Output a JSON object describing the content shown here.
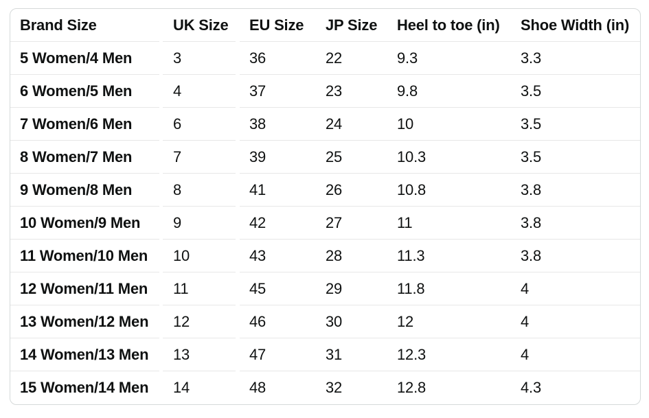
{
  "size_chart": {
    "columns": [
      {
        "key": "brand_size",
        "label": "Brand Size"
      },
      {
        "key": "uk_size",
        "label": "UK Size"
      },
      {
        "key": "eu_size",
        "label": "EU Size"
      },
      {
        "key": "jp_size",
        "label": "JP Size"
      },
      {
        "key": "heel_to_toe_in",
        "label": "Heel to toe (in)"
      },
      {
        "key": "shoe_width_in",
        "label": "Shoe Width (in)"
      }
    ],
    "rows": [
      {
        "brand_size": "5 Women/4 Men",
        "uk_size": "3",
        "eu_size": "36",
        "jp_size": "22",
        "heel_to_toe_in": "9.3",
        "shoe_width_in": "3.3"
      },
      {
        "brand_size": "6 Women/5 Men",
        "uk_size": "4",
        "eu_size": "37",
        "jp_size": "23",
        "heel_to_toe_in": "9.8",
        "shoe_width_in": "3.5"
      },
      {
        "brand_size": "7 Women/6 Men",
        "uk_size": "6",
        "eu_size": "38",
        "jp_size": "24",
        "heel_to_toe_in": "10",
        "shoe_width_in": "3.5"
      },
      {
        "brand_size": "8 Women/7 Men",
        "uk_size": "7",
        "eu_size": "39",
        "jp_size": "25",
        "heel_to_toe_in": "10.3",
        "shoe_width_in": "3.5"
      },
      {
        "brand_size": "9 Women/8 Men",
        "uk_size": "8",
        "eu_size": "41",
        "jp_size": "26",
        "heel_to_toe_in": "10.8",
        "shoe_width_in": "3.8"
      },
      {
        "brand_size": "10 Women/9 Men",
        "uk_size": "9",
        "eu_size": "42",
        "jp_size": "27",
        "heel_to_toe_in": "11",
        "shoe_width_in": "3.8"
      },
      {
        "brand_size": "11 Women/10 Men",
        "uk_size": "10",
        "eu_size": "43",
        "jp_size": "28",
        "heel_to_toe_in": "11.3",
        "shoe_width_in": "3.8"
      },
      {
        "brand_size": "12 Women/11 Men",
        "uk_size": "11",
        "eu_size": "45",
        "jp_size": "29",
        "heel_to_toe_in": "11.8",
        "shoe_width_in": "4"
      },
      {
        "brand_size": "13 Women/12 Men",
        "uk_size": "12",
        "eu_size": "46",
        "jp_size": "30",
        "heel_to_toe_in": "12",
        "shoe_width_in": "4"
      },
      {
        "brand_size": "14 Women/13 Men",
        "uk_size": "13",
        "eu_size": "47",
        "jp_size": "31",
        "heel_to_toe_in": "12.3",
        "shoe_width_in": "4"
      },
      {
        "brand_size": "15 Women/14 Men",
        "uk_size": "14",
        "eu_size": "48",
        "jp_size": "32",
        "heel_to_toe_in": "12.8",
        "shoe_width_in": "4.3"
      }
    ],
    "colors": {
      "outer_border": "#d5d9d9",
      "row_divider": "#e7e7e7",
      "text": "#0f1111",
      "background": "#ffffff"
    }
  }
}
